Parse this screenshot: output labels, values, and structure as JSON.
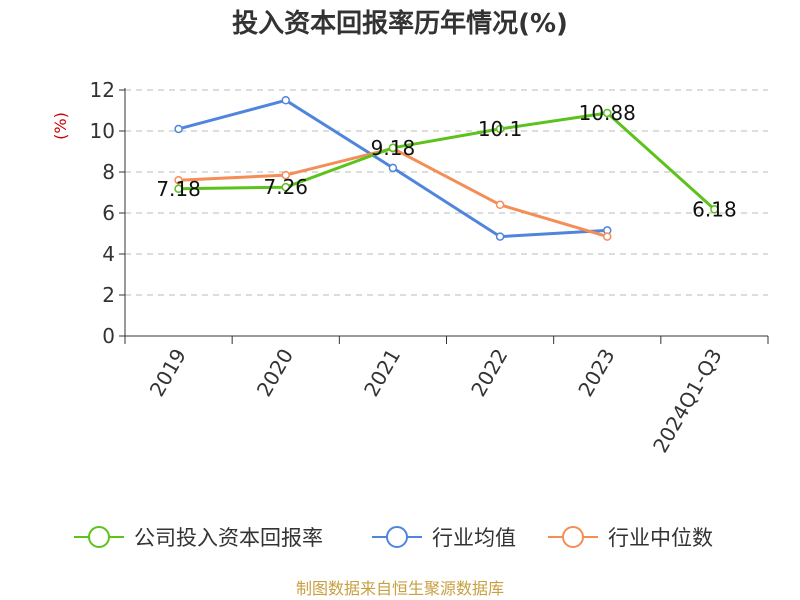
{
  "chart_data": {
    "type": "line",
    "title": "投入资本回报率历年情况(%)",
    "ylabel": "(%)",
    "xlabel": "",
    "categories": [
      "2019",
      "2020",
      "2021",
      "2022",
      "2023",
      "2024Q1-Q3"
    ],
    "ylim": [
      0,
      12
    ],
    "yticks": [
      0,
      2,
      4,
      6,
      8,
      10,
      12
    ],
    "grid": "horizontal-dashed",
    "legend_position": "bottom",
    "series": [
      {
        "name": "公司投入资本回报率",
        "color": "#5cc21c",
        "values": [
          7.18,
          7.26,
          9.18,
          10.1,
          10.88,
          6.18
        ],
        "labels": [
          "7.18",
          "7.26",
          "9.18",
          "10.1",
          "10.88",
          "6.18"
        ]
      },
      {
        "name": "行业均值",
        "color": "#4f85dc",
        "values": [
          10.1,
          11.5,
          8.2,
          4.85,
          5.15,
          null
        ],
        "labels": null
      },
      {
        "name": "行业中位数",
        "color": "#f58d56",
        "values": [
          7.6,
          7.85,
          9.15,
          6.4,
          4.85,
          null
        ],
        "labels": null
      }
    ],
    "source": "制图数据来自恒生聚源数据库"
  }
}
